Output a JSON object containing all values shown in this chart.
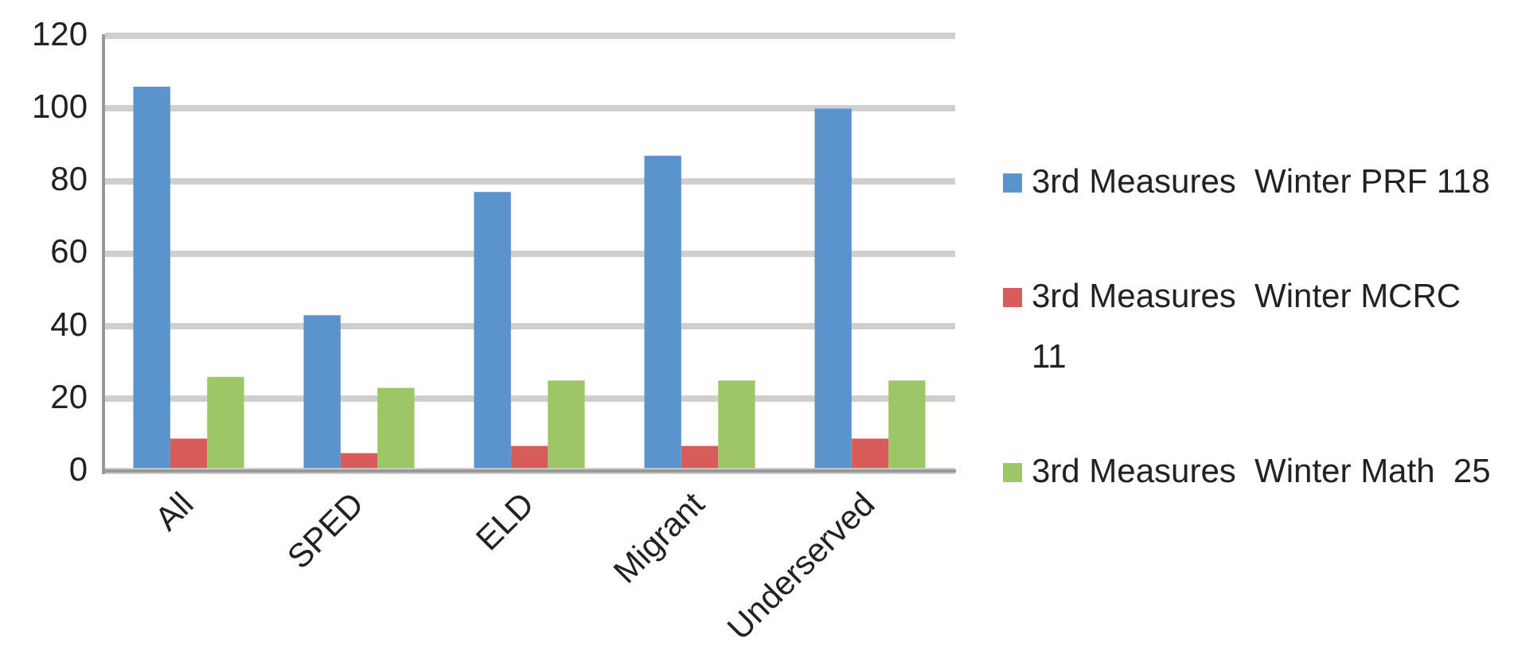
{
  "chart_data": {
    "type": "bar",
    "categories": [
      "All",
      "SPED",
      "ELD",
      "Migrant",
      "Underserved"
    ],
    "series": [
      {
        "name": "3rd Measures  Winter PRF 118",
        "color": "#5b93cc",
        "values": [
          106,
          43,
          77,
          87,
          100
        ]
      },
      {
        "name": "3rd Measures  Winter MCRC 11",
        "color": "#d85c5a",
        "values": [
          9,
          5,
          7,
          7,
          9
        ]
      },
      {
        "name": "3rd Measures  Winter Math  25",
        "color": "#9dc766",
        "values": [
          26,
          23,
          25,
          25,
          25
        ]
      }
    ],
    "ylim": [
      0,
      120
    ],
    "yticks": [
      0,
      20,
      40,
      60,
      80,
      100,
      120
    ],
    "grid": "y",
    "legend": "right"
  }
}
